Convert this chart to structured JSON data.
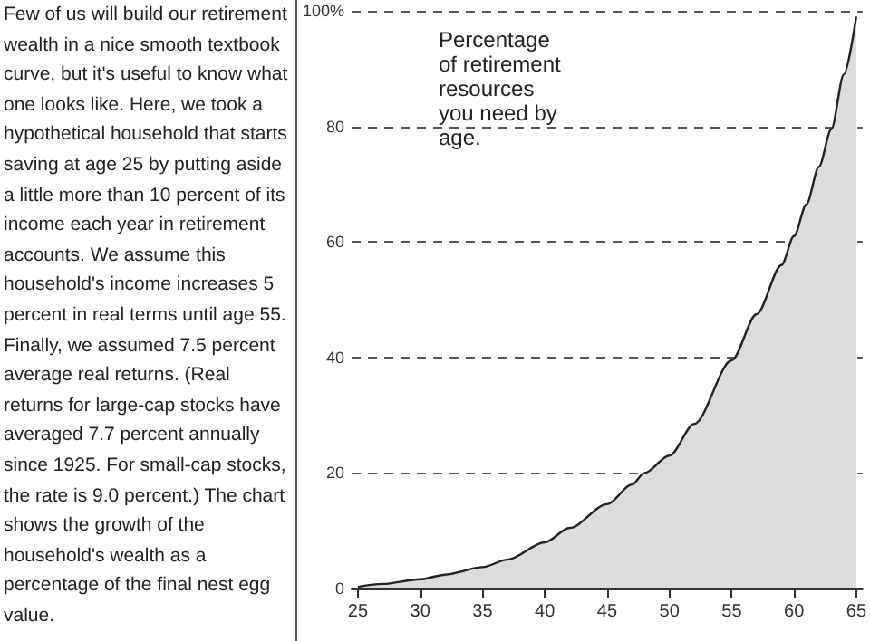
{
  "chart_data": {
    "type": "area",
    "title": "Percentage of retirement resources you need by age.",
    "annotations": [
      "Few of us will build our retirement wealth in a nice smooth textbook curve, but it's useful to know what one looks like. Here, we took a hypothetical household that starts saving at age 25 by putting aside a little more than 10 percent of its income each year in retirement accounts. We assume this household's income increases 5 percent in real terms until age 55. Finally, we assumed 7.5 percent average real returns. (Real returns for large-cap stocks have averaged 7.7 percent annually since 1925. For small-cap stocks, the rate is 9.0 percent.) The chart shows the growth of the household's wealth as a percentage of the final nest egg value."
    ],
    "x": [
      25,
      27,
      30,
      32,
      35,
      37,
      40,
      42,
      45,
      47,
      48,
      50,
      52,
      55,
      57,
      59,
      60,
      61,
      62,
      63,
      64,
      65
    ],
    "series": [
      {
        "color": "#222222",
        "values": [
          0.3,
          0.8,
          1.6,
          2.4,
          3.7,
          5,
          8,
          10.5,
          14.6,
          18,
          20,
          23,
          28.5,
          39.5,
          47.5,
          56,
          61,
          66.5,
          73,
          79.5,
          89,
          99
        ]
      }
    ],
    "xlim": [
      24.5,
      65.5
    ],
    "xticks": [
      25,
      30,
      35,
      40,
      45,
      50,
      55,
      60,
      65
    ],
    "ylim": [
      0,
      100
    ],
    "yticks": [
      0,
      20,
      40,
      60,
      80,
      {
        "value": 100,
        "label": "100%"
      }
    ],
    "grid": "y",
    "marker": "none",
    "line_style": "solid"
  }
}
